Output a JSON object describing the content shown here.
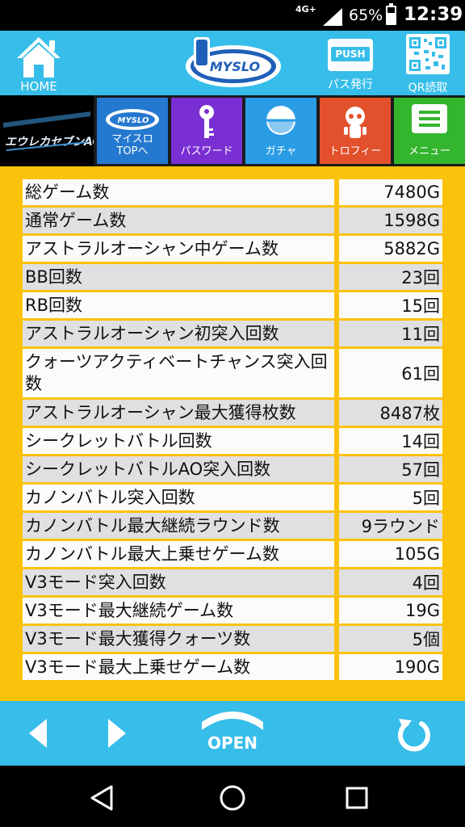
{
  "status_bar": {
    "network": "4G+",
    "battery_percent": "65%",
    "battery_level": 0.65,
    "time": "12:39"
  },
  "header": {
    "home_label": "HOME",
    "logo_text": "MYSLO",
    "push_icon_text": "PUSH",
    "push_label": "パス発行",
    "qr_label": "QR読取"
  },
  "menu": {
    "game_logo_text": "エウレカセブンAO",
    "items": [
      {
        "icon_text": "MYSLO",
        "label_line1": "マイスロ",
        "label_line2": "TOPへ"
      },
      {
        "label": "パスワード"
      },
      {
        "label": "ガチャ"
      },
      {
        "label": "トロフィー"
      },
      {
        "label": "メニュー"
      }
    ]
  },
  "stats": [
    {
      "name": "総ゲーム数",
      "value": "7480G"
    },
    {
      "name": "通常ゲーム数",
      "value": "1598G"
    },
    {
      "name": "アストラルオーシャン中ゲーム数",
      "value": "5882G"
    },
    {
      "name": "BB回数",
      "value": "23回"
    },
    {
      "name": "RB回数",
      "value": "15回"
    },
    {
      "name": "アストラルオーシャン初突入回数",
      "value": "11回"
    },
    {
      "name": "クォーツアクティベートチャンス突入回数",
      "value": "61回"
    },
    {
      "name": "アストラルオーシャン最大獲得枚数",
      "value": "8487枚"
    },
    {
      "name": "シークレットバトル回数",
      "value": "14回"
    },
    {
      "name": "シークレットバトルAO突入回数",
      "value": "57回"
    },
    {
      "name": "カノンバトル突入回数",
      "value": "5回"
    },
    {
      "name": "カノンバトル最大継続ラウンド数",
      "value": "9ラウンド"
    },
    {
      "name": "カノンバトル最大上乗せゲーム数",
      "value": "105G"
    },
    {
      "name": "V3モード突入回数",
      "value": "4回"
    },
    {
      "name": "V3モード最大継続ゲーム数",
      "value": "19G"
    },
    {
      "name": "V3モード最大獲得クォーツ数",
      "value": "5個"
    },
    {
      "name": "V3モード最大上乗せゲーム数",
      "value": "190G"
    }
  ],
  "bottom_nav": {
    "open_label": "OPEN"
  },
  "colors": {
    "header_blue": "#36bde9",
    "data_background": "#fbc20b",
    "row_light": "#fbfbfb",
    "row_gray": "#e0e0e0",
    "tile_myslo": "#2578cf",
    "tile_password": "#7a2fd3",
    "tile_gacha": "#2a9ce6",
    "tile_trophy": "#e2512c",
    "tile_menu": "#34b52e"
  }
}
